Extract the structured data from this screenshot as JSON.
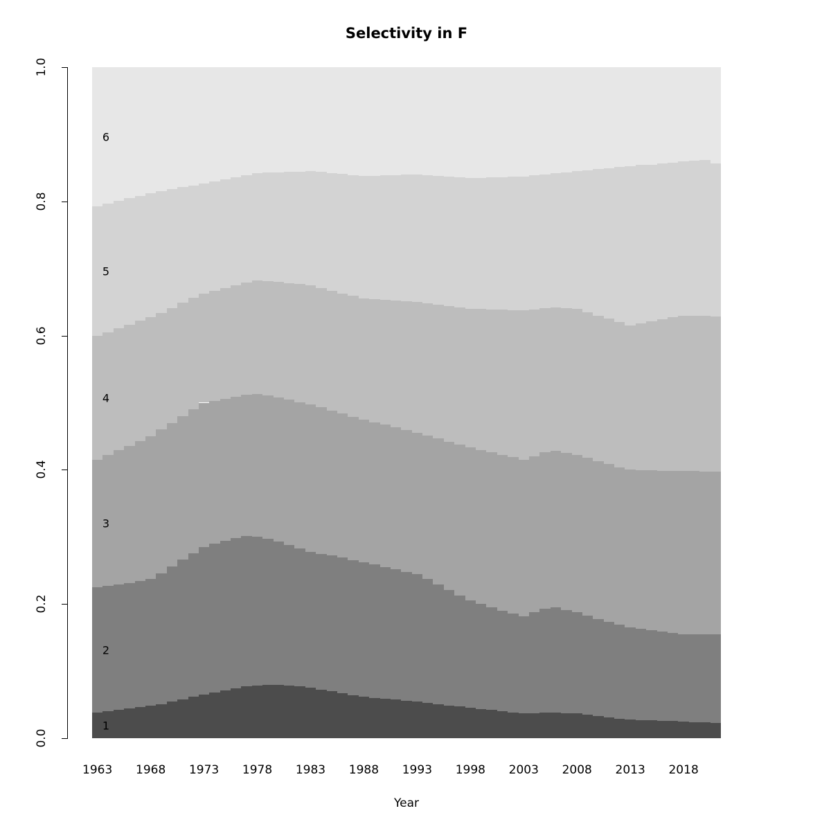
{
  "chart_data": {
    "type": "area",
    "subtype": "stacked-proportion-bars",
    "title": "Selectivity in F",
    "xlabel": "Year",
    "ylabel": "",
    "ylim": [
      0.0,
      1.0
    ],
    "grid": false,
    "legend": "labels drawn inside plot at left edge",
    "x_ticks": [
      1963,
      1968,
      1973,
      1978,
      1983,
      1988,
      1993,
      1998,
      2003,
      2008,
      2013,
      2018
    ],
    "y_ticks": [
      "0.0",
      "0.2",
      "0.4",
      "0.6",
      "0.8",
      "1.0"
    ],
    "series_labels_bottom_to_top": [
      "1",
      "2",
      "3",
      "4",
      "5",
      "6"
    ],
    "colors_bottom_to_top": [
      "#4c4c4c",
      "#7f7f7f",
      "#a4a4a4",
      "#bdbdbd",
      "#d3d3d3",
      "#e7e7e7"
    ],
    "in_plot_labels": [
      {
        "text": "1",
        "y_value": 0.019
      },
      {
        "text": "2",
        "y_value": 0.131
      },
      {
        "text": "3",
        "y_value": 0.32
      },
      {
        "text": "4",
        "y_value": 0.507
      },
      {
        "text": "5",
        "y_value": 0.696
      },
      {
        "text": "6",
        "y_value": 0.896
      }
    ],
    "years": [
      1963,
      1964,
      1965,
      1966,
      1967,
      1968,
      1969,
      1970,
      1971,
      1972,
      1973,
      1974,
      1975,
      1976,
      1977,
      1978,
      1979,
      1980,
      1981,
      1982,
      1983,
      1984,
      1985,
      1986,
      1987,
      1988,
      1989,
      1990,
      1991,
      1992,
      1993,
      1994,
      1995,
      1996,
      1997,
      1998,
      1999,
      2000,
      2001,
      2002,
      2003,
      2004,
      2005,
      2006,
      2007,
      2008,
      2009,
      2010,
      2011,
      2012,
      2013,
      2014,
      2015,
      2016,
      2017,
      2018,
      2019,
      2020,
      2021
    ],
    "cumulative_note": "Cumulative proportion at the TOP of each series per year (read off the chart); series proportions are successive differences; top of series 6 is always 1.0",
    "cumulative": {
      "c1": [
        0.038,
        0.04,
        0.042,
        0.044,
        0.046,
        0.048,
        0.051,
        0.055,
        0.058,
        0.062,
        0.065,
        0.068,
        0.071,
        0.074,
        0.077,
        0.078,
        0.079,
        0.079,
        0.078,
        0.077,
        0.075,
        0.072,
        0.07,
        0.067,
        0.064,
        0.062,
        0.06,
        0.059,
        0.058,
        0.056,
        0.055,
        0.053,
        0.051,
        0.049,
        0.047,
        0.045,
        0.043,
        0.042,
        0.04,
        0.038,
        0.037,
        0.037,
        0.038,
        0.038,
        0.037,
        0.037,
        0.035,
        0.033,
        0.031,
        0.029,
        0.028,
        0.027,
        0.027,
        0.026,
        0.026,
        0.025,
        0.024,
        0.024,
        0.023
      ],
      "c2": [
        0.225,
        0.227,
        0.229,
        0.231,
        0.234,
        0.237,
        0.246,
        0.256,
        0.266,
        0.276,
        0.285,
        0.29,
        0.294,
        0.298,
        0.301,
        0.3,
        0.297,
        0.293,
        0.288,
        0.283,
        0.278,
        0.275,
        0.272,
        0.269,
        0.265,
        0.262,
        0.259,
        0.255,
        0.252,
        0.248,
        0.245,
        0.237,
        0.229,
        0.221,
        0.213,
        0.205,
        0.2,
        0.195,
        0.19,
        0.186,
        0.182,
        0.188,
        0.193,
        0.195,
        0.191,
        0.188,
        0.183,
        0.178,
        0.173,
        0.169,
        0.165,
        0.163,
        0.161,
        0.159,
        0.157,
        0.155,
        0.155,
        0.155,
        0.155
      ],
      "c3": [
        0.415,
        0.422,
        0.429,
        0.436,
        0.443,
        0.45,
        0.46,
        0.47,
        0.48,
        0.49,
        0.5,
        0.503,
        0.506,
        0.509,
        0.512,
        0.513,
        0.511,
        0.508,
        0.505,
        0.501,
        0.497,
        0.493,
        0.488,
        0.484,
        0.479,
        0.475,
        0.471,
        0.467,
        0.463,
        0.459,
        0.455,
        0.451,
        0.447,
        0.442,
        0.438,
        0.433,
        0.429,
        0.426,
        0.422,
        0.419,
        0.415,
        0.42,
        0.426,
        0.428,
        0.425,
        0.422,
        0.418,
        0.413,
        0.409,
        0.404,
        0.4,
        0.399,
        0.399,
        0.398,
        0.398,
        0.398,
        0.398,
        0.397,
        0.397
      ],
      "c4": [
        0.6,
        0.605,
        0.611,
        0.616,
        0.622,
        0.627,
        0.634,
        0.641,
        0.649,
        0.656,
        0.663,
        0.667,
        0.671,
        0.675,
        0.679,
        0.682,
        0.681,
        0.68,
        0.678,
        0.677,
        0.675,
        0.671,
        0.667,
        0.663,
        0.659,
        0.655,
        0.654,
        0.653,
        0.652,
        0.651,
        0.65,
        0.648,
        0.646,
        0.644,
        0.642,
        0.64,
        0.64,
        0.639,
        0.639,
        0.638,
        0.638,
        0.639,
        0.641,
        0.642,
        0.641,
        0.64,
        0.635,
        0.63,
        0.625,
        0.62,
        0.615,
        0.618,
        0.621,
        0.624,
        0.627,
        0.63,
        0.629,
        0.629,
        0.628
      ],
      "c5": [
        0.793,
        0.797,
        0.801,
        0.805,
        0.808,
        0.812,
        0.815,
        0.818,
        0.821,
        0.824,
        0.827,
        0.83,
        0.833,
        0.836,
        0.839,
        0.842,
        0.843,
        0.843,
        0.844,
        0.844,
        0.845,
        0.844,
        0.842,
        0.841,
        0.839,
        0.838,
        0.838,
        0.839,
        0.839,
        0.84,
        0.84,
        0.839,
        0.838,
        0.837,
        0.836,
        0.835,
        0.835,
        0.836,
        0.836,
        0.837,
        0.837,
        0.839,
        0.84,
        0.842,
        0.843,
        0.845,
        0.846,
        0.848,
        0.849,
        0.851,
        0.852,
        0.854,
        0.855,
        0.857,
        0.858,
        0.86,
        0.861,
        0.862,
        0.857
      ]
    }
  }
}
